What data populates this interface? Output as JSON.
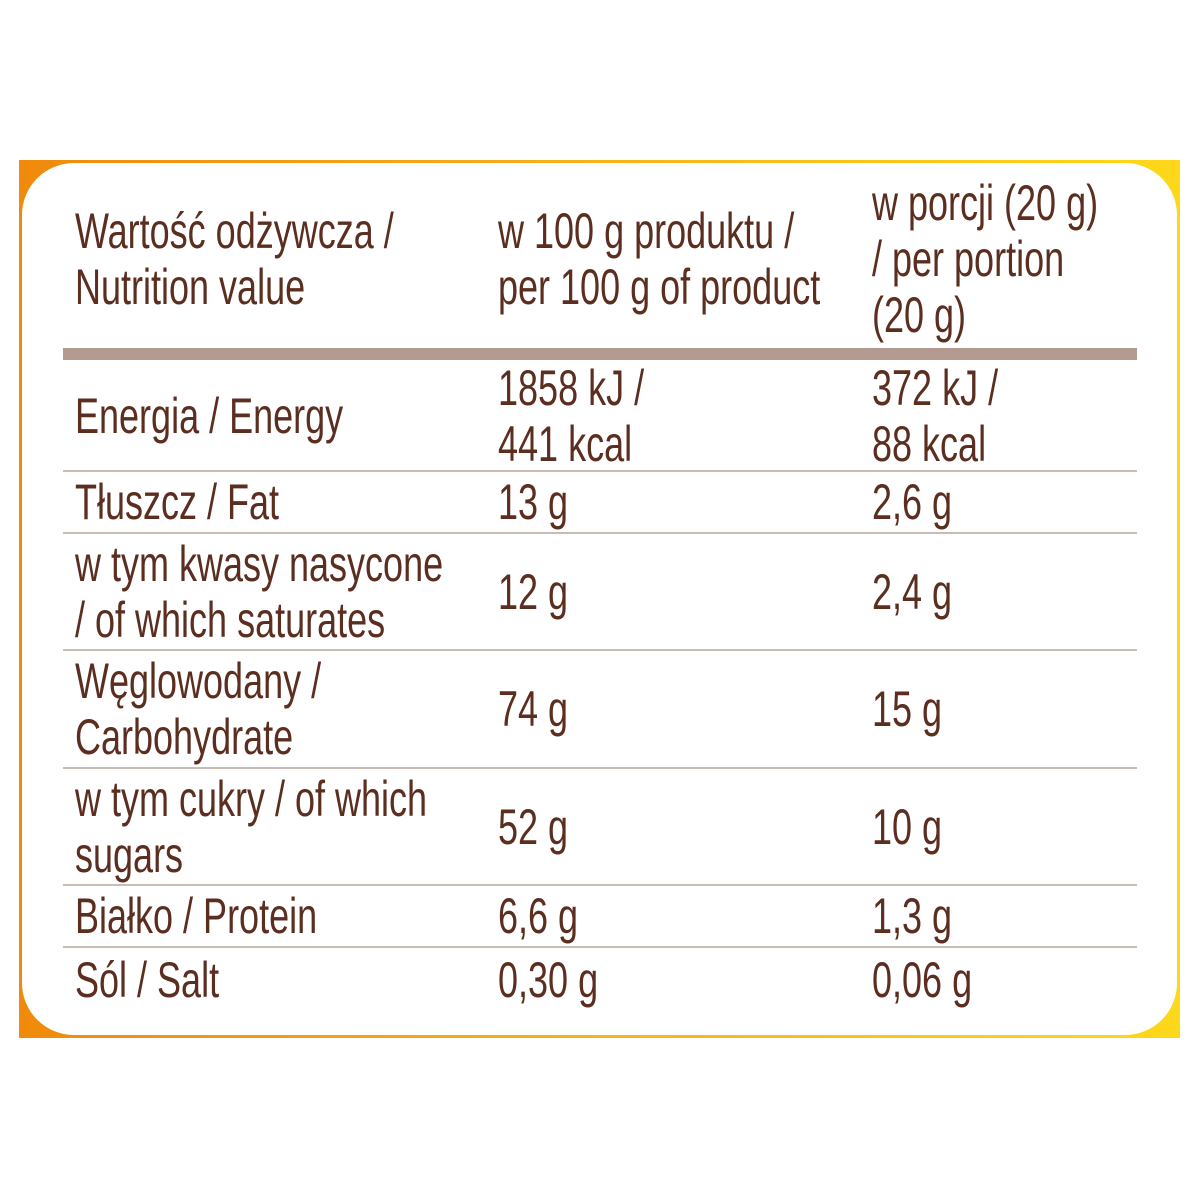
{
  "colors": {
    "text": "#5b2e20",
    "frame_left": "#f08a0c",
    "frame_right": "#fdd81a",
    "header_bar": "#b39b91",
    "separator": "#c9bcb5"
  },
  "header": {
    "col1": "Wartość odżywcza /\nNutrition value",
    "col2": "w 100 g produktu /\nper 100 g of product",
    "col3": "w porcji (20 g)\n/ per portion\n(20 g)"
  },
  "rows": [
    {
      "label": "Energia / Energy",
      "per100": "1858 kJ /\n441 kcal",
      "portion": "372 kJ /\n88 kcal"
    },
    {
      "label": "Tłuszcz / Fat",
      "per100": "13 g",
      "portion": "2,6 g"
    },
    {
      "label": "w tym kwasy nasycone\n/ of which saturates",
      "per100": "12 g",
      "portion": "2,4 g"
    },
    {
      "label": "Węglowodany /\nCarbohydrate",
      "per100": "74 g",
      "portion": "15 g"
    },
    {
      "label": "w tym cukry / of which\nsugars",
      "per100": "52 g",
      "portion": "10 g"
    },
    {
      "label": "Białko / Protein",
      "per100": "6,6 g",
      "portion": "1,3 g"
    },
    {
      "label": "Sól / Salt",
      "per100": "0,30 g",
      "portion": "0,06 g"
    }
  ]
}
